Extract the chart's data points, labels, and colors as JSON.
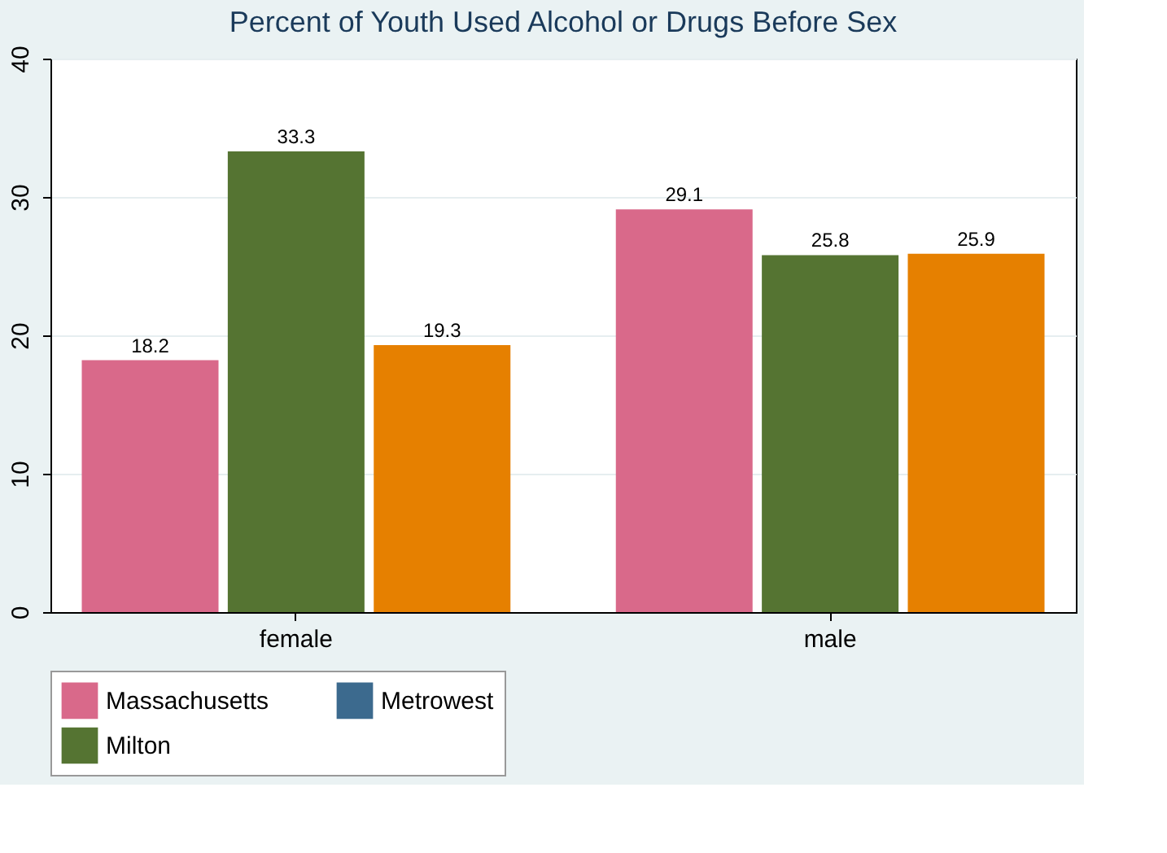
{
  "chart_data": {
    "type": "bar",
    "title": "Percent of Youth Used Alcohol or Drugs Before Sex",
    "categories": [
      "female",
      "male"
    ],
    "series": [
      {
        "name": "Massachusetts",
        "color": "#d9698a",
        "values": [
          18.2,
          29.1
        ]
      },
      {
        "name": "Metrowest",
        "color": "#3c6a8e",
        "values": [
          null,
          null
        ]
      },
      {
        "name": "Milton",
        "color": "#557432",
        "values": [
          33.3,
          25.8
        ]
      },
      {
        "color": "#e68000",
        "values": [
          19.3,
          25.9
        ]
      }
    ],
    "ylim": [
      0,
      40
    ],
    "yticks": [
      0,
      10,
      20,
      30,
      40
    ],
    "grid": "y",
    "legend": "bottom",
    "data_labels": true
  }
}
